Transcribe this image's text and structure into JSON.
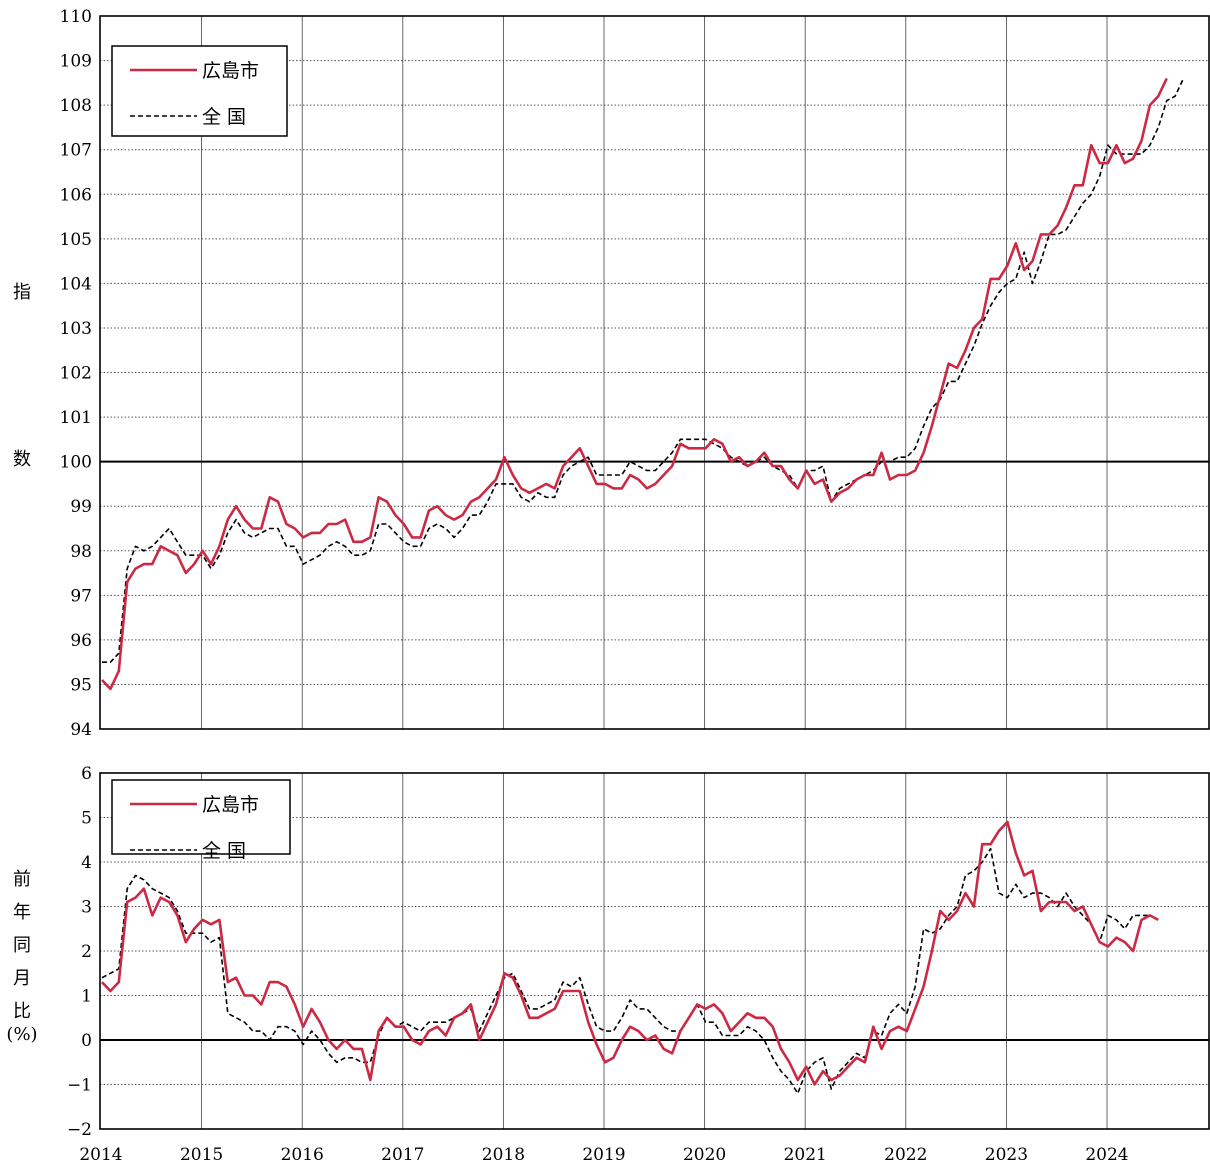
{
  "colors": {
    "hiroshima": "#cc2a44",
    "national": "#000000"
  },
  "x_tick_labels": [
    "2014",
    "2015",
    "2016",
    "2017",
    "2018",
    "2019",
    "2020",
    "2021",
    "2022",
    "2023",
    "2024"
  ],
  "chart_data": [
    {
      "type": "line",
      "title": "",
      "ylabel_chars": [
        "指",
        "数"
      ],
      "ylim": [
        94,
        110
      ],
      "yticks": [
        94,
        95,
        96,
        97,
        98,
        99,
        100,
        101,
        102,
        103,
        104,
        105,
        106,
        107,
        108,
        109,
        110
      ],
      "reference_line": 100,
      "x_start": "2014-01",
      "x_end": "2024-07",
      "grid": true,
      "legend_position": "top-left",
      "series": [
        {
          "name": "広島市",
          "style": "solid",
          "values": [
            95.1,
            94.9,
            95.3,
            97.3,
            97.6,
            97.7,
            97.7,
            98.1,
            98.0,
            97.9,
            97.5,
            97.7,
            98.0,
            97.7,
            98.1,
            98.7,
            99.0,
            98.7,
            98.5,
            98.5,
            99.2,
            99.1,
            98.6,
            98.5,
            98.3,
            98.4,
            98.4,
            98.6,
            98.6,
            98.7,
            98.2,
            98.2,
            98.3,
            99.2,
            99.1,
            98.8,
            98.6,
            98.3,
            98.3,
            98.9,
            99.0,
            98.8,
            98.7,
            98.8,
            99.1,
            99.2,
            99.4,
            99.6,
            100.1,
            99.7,
            99.4,
            99.3,
            99.4,
            99.5,
            99.4,
            99.9,
            100.1,
            100.3,
            99.9,
            99.5,
            99.5,
            99.4,
            99.4,
            99.7,
            99.6,
            99.4,
            99.5,
            99.7,
            99.9,
            100.4,
            100.3,
            100.3,
            100.3,
            100.5,
            100.4,
            100.0,
            100.1,
            99.9,
            100.0,
            100.2,
            99.9,
            99.9,
            99.6,
            99.4,
            99.8,
            99.5,
            99.6,
            99.1,
            99.3,
            99.4,
            99.6,
            99.7,
            99.7,
            100.2,
            99.6,
            99.7,
            99.7,
            99.8,
            100.2,
            100.8,
            101.5,
            102.2,
            102.1,
            102.5,
            103.0,
            103.2,
            104.1,
            104.1,
            104.4,
            104.9,
            104.3,
            104.5,
            105.1,
            105.1,
            105.3,
            105.7,
            106.2,
            106.2,
            107.1,
            106.7,
            106.7,
            107.1,
            106.7,
            106.8,
            107.2,
            108.0,
            108.2,
            108.6
          ]
        },
        {
          "name": "全 国",
          "style": "dashed",
          "values": [
            95.5,
            95.5,
            95.7,
            97.6,
            98.1,
            98.0,
            98.1,
            98.3,
            98.5,
            98.2,
            97.9,
            97.9,
            97.9,
            97.6,
            97.9,
            98.4,
            98.7,
            98.4,
            98.3,
            98.4,
            98.5,
            98.5,
            98.1,
            98.1,
            97.7,
            97.8,
            97.9,
            98.1,
            98.2,
            98.1,
            97.9,
            97.9,
            98.0,
            98.6,
            98.6,
            98.4,
            98.2,
            98.1,
            98.1,
            98.5,
            98.6,
            98.5,
            98.3,
            98.5,
            98.8,
            98.8,
            99.1,
            99.5,
            99.5,
            99.5,
            99.2,
            99.1,
            99.3,
            99.2,
            99.2,
            99.7,
            99.9,
            100.0,
            100.1,
            99.7,
            99.7,
            99.7,
            99.7,
            100.0,
            99.9,
            99.8,
            99.8,
            100.0,
            100.2,
            100.5,
            100.5,
            100.5,
            100.5,
            100.4,
            100.3,
            100.1,
            100.0,
            99.9,
            100.0,
            100.1,
            99.9,
            99.8,
            99.7,
            99.4,
            99.8,
            99.8,
            99.9,
            99.1,
            99.4,
            99.5,
            99.6,
            99.7,
            99.8,
            100.0,
            100.0,
            100.1,
            100.1,
            100.3,
            100.8,
            101.2,
            101.4,
            101.8,
            101.8,
            102.2,
            102.6,
            103.1,
            103.5,
            103.8,
            104.0,
            104.1,
            104.7,
            104.0,
            104.5,
            105.1,
            105.1,
            105.2,
            105.5,
            105.8,
            106.0,
            106.4,
            107.1,
            106.9,
            106.9,
            106.9,
            106.9,
            107.1,
            107.5,
            108.1,
            108.2,
            108.6
          ]
        }
      ]
    },
    {
      "type": "line",
      "title": "",
      "ylabel_chars": [
        "前",
        "年",
        "同",
        "月",
        "比",
        "(%)"
      ],
      "ylim": [
        -2,
        6
      ],
      "yticks": [
        -2,
        -1,
        0,
        1,
        2,
        3,
        4,
        5,
        6
      ],
      "ytick_labels": [
        "−2",
        "−1",
        "0",
        "1",
        "2",
        "3",
        "4",
        "5",
        "6"
      ],
      "reference_line": 0,
      "x_start": "2014-01",
      "x_end": "2024-07",
      "grid": true,
      "legend_position": "top-left",
      "series": [
        {
          "name": "広島市",
          "style": "solid",
          "values": [
            1.3,
            1.1,
            1.3,
            3.1,
            3.2,
            3.4,
            2.8,
            3.2,
            3.1,
            2.8,
            2.2,
            2.5,
            2.7,
            2.6,
            2.7,
            1.3,
            1.4,
            1.0,
            1.0,
            0.8,
            1.3,
            1.3,
            1.2,
            0.8,
            0.3,
            0.7,
            0.4,
            0.0,
            -0.2,
            0.0,
            -0.2,
            -0.2,
            -0.9,
            0.2,
            0.5,
            0.3,
            0.3,
            0.0,
            -0.1,
            0.2,
            0.3,
            0.1,
            0.5,
            0.6,
            0.8,
            0.0,
            0.4,
            0.8,
            1.5,
            1.4,
            1.0,
            0.5,
            0.5,
            0.6,
            0.7,
            1.1,
            1.1,
            1.1,
            0.4,
            -0.1,
            -0.5,
            -0.4,
            0.0,
            0.3,
            0.2,
            0.0,
            0.1,
            -0.2,
            -0.3,
            0.2,
            0.5,
            0.8,
            0.7,
            0.8,
            0.6,
            0.2,
            0.4,
            0.6,
            0.5,
            0.5,
            0.3,
            -0.2,
            -0.5,
            -0.9,
            -0.6,
            -1.0,
            -0.7,
            -0.9,
            -0.8,
            -0.6,
            -0.4,
            -0.5,
            0.3,
            -0.2,
            0.2,
            0.3,
            0.2,
            0.7,
            1.2,
            2.0,
            2.9,
            2.7,
            2.9,
            3.3,
            3.0,
            4.4,
            4.4,
            4.7,
            4.9,
            4.2,
            3.7,
            3.8,
            2.9,
            3.1,
            3.1,
            3.1,
            2.9,
            3.0,
            2.6,
            2.2,
            2.1,
            2.3,
            2.2,
            2.0,
            2.7,
            2.8,
            2.7
          ]
        },
        {
          "name": "全 国",
          "style": "dashed",
          "values": [
            1.4,
            1.5,
            1.6,
            3.4,
            3.7,
            3.6,
            3.4,
            3.3,
            3.2,
            2.9,
            2.4,
            2.4,
            2.4,
            2.2,
            2.3,
            0.6,
            0.5,
            0.4,
            0.2,
            0.2,
            0.0,
            0.3,
            0.3,
            0.2,
            -0.1,
            0.2,
            0.0,
            -0.3,
            -0.5,
            -0.4,
            -0.4,
            -0.5,
            -0.5,
            0.1,
            0.5,
            0.3,
            0.4,
            0.3,
            0.2,
            0.4,
            0.4,
            0.4,
            0.5,
            0.6,
            0.7,
            0.2,
            0.6,
            1.0,
            1.4,
            1.5,
            1.1,
            0.7,
            0.7,
            0.8,
            0.9,
            1.3,
            1.2,
            1.4,
            0.8,
            0.3,
            0.2,
            0.2,
            0.5,
            0.9,
            0.7,
            0.7,
            0.5,
            0.3,
            0.2,
            0.2,
            0.5,
            0.8,
            0.4,
            0.4,
            0.1,
            0.1,
            0.1,
            0.3,
            0.2,
            0.0,
            -0.4,
            -0.7,
            -0.9,
            -1.2,
            -0.7,
            -0.5,
            -0.4,
            -1.1,
            -0.7,
            -0.5,
            -0.3,
            -0.4,
            0.2,
            0.1,
            0.6,
            0.8,
            0.6,
            1.2,
            2.5,
            2.4,
            2.5,
            2.8,
            3.0,
            3.7,
            3.8,
            4.0,
            4.3,
            3.3,
            3.2,
            3.5,
            3.2,
            3.3,
            3.3,
            3.2,
            3.0,
            3.3,
            3.0,
            2.8,
            2.6,
            2.2,
            2.8,
            2.7,
            2.5,
            2.8,
            2.8,
            2.8
          ]
        }
      ]
    }
  ]
}
